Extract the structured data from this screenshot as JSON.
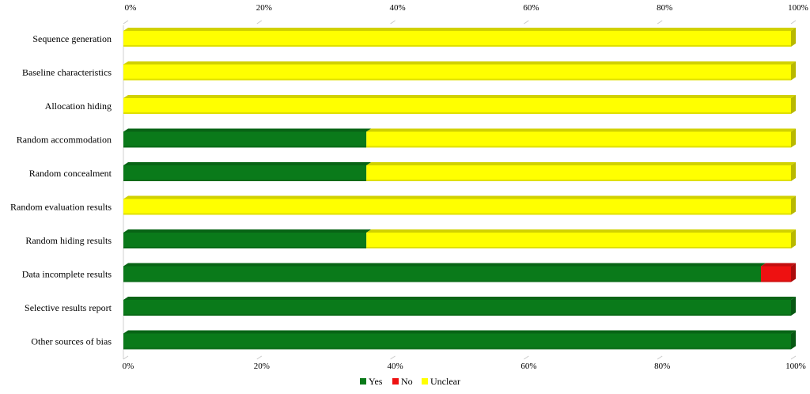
{
  "chart_data": {
    "type": "bar",
    "orientation": "horizontal",
    "stacked": true,
    "percent": true,
    "title": "",
    "xlabel": "",
    "ylabel": "",
    "xlim": [
      0,
      100
    ],
    "x_ticks": [
      "0%",
      "20%",
      "40%",
      "60%",
      "80%",
      "100%"
    ],
    "categories": [
      "Sequence generation",
      "Baseline characteristics",
      "Allocation hiding",
      "Random accommodation",
      "Random concealment",
      "Random evaluation results",
      "Random hiding results",
      "Data incomplete results",
      "Selective results report",
      "Other sources of bias"
    ],
    "series": [
      {
        "name": "Yes",
        "color": "#0a7a1a",
        "values": [
          0,
          0,
          0,
          36.4,
          36.4,
          0,
          36.4,
          95.5,
          100,
          100
        ]
      },
      {
        "name": "No",
        "color": "#ee1111",
        "values": [
          0,
          0,
          0,
          0,
          0,
          0,
          0,
          4.5,
          0,
          0
        ]
      },
      {
        "name": "Unclear",
        "color": "#ffff00",
        "values": [
          100,
          100,
          100,
          63.6,
          63.6,
          100,
          63.6,
          0,
          0,
          0
        ]
      }
    ],
    "grid": false,
    "legend": "bottom-center"
  }
}
